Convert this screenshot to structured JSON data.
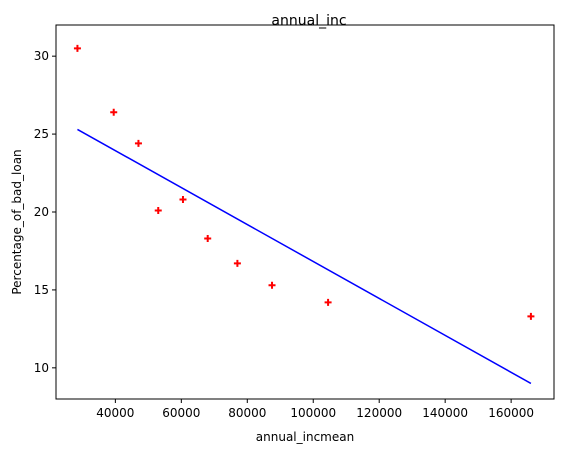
{
  "chart_data": {
    "type": "scatter",
    "title": "annual_inc",
    "xlabel": "annual_incmean",
    "ylabel": "Percentage_of_bad_loan",
    "xlim": [
      22000,
      173000
    ],
    "ylim": [
      8,
      32
    ],
    "xticks": [
      40000,
      60000,
      80000,
      100000,
      120000,
      140000,
      160000
    ],
    "yticks": [
      10,
      15,
      20,
      25,
      30
    ],
    "grid": false,
    "series": [
      {
        "kind": "scatter",
        "marker": "plus",
        "color": "#ff0000",
        "points": [
          {
            "x": 28500,
            "y": 30.5
          },
          {
            "x": 39500,
            "y": 26.4
          },
          {
            "x": 47000,
            "y": 24.4
          },
          {
            "x": 53000,
            "y": 20.1
          },
          {
            "x": 60500,
            "y": 20.8
          },
          {
            "x": 68000,
            "y": 18.3
          },
          {
            "x": 77000,
            "y": 16.7
          },
          {
            "x": 87500,
            "y": 15.3
          },
          {
            "x": 104500,
            "y": 14.2
          },
          {
            "x": 166000,
            "y": 13.3
          }
        ]
      },
      {
        "kind": "line",
        "color": "#0000ff",
        "points": [
          {
            "x": 28500,
            "y": 25.3
          },
          {
            "x": 166000,
            "y": 9.0
          }
        ]
      }
    ]
  }
}
